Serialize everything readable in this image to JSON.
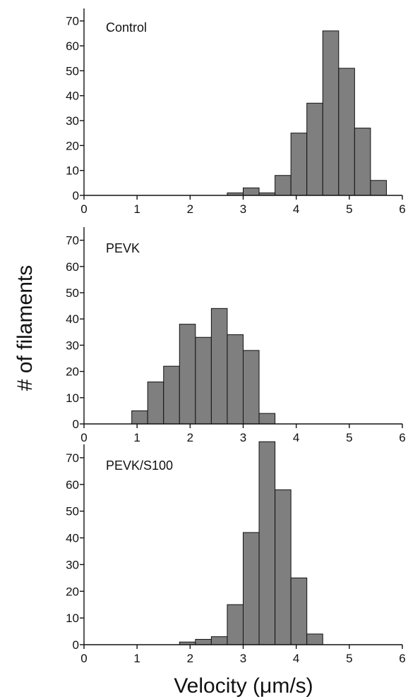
{
  "chart_data": {
    "type": "bar",
    "ylabel": "# of filaments",
    "xlabel": "Velocity (μm/s)",
    "bin_width": 0.3,
    "xlim": [
      0,
      6
    ],
    "ylim": [
      0,
      75
    ],
    "x_ticks": [
      0,
      1,
      2,
      3,
      4,
      5,
      6
    ],
    "y_ticks": [
      0,
      10,
      20,
      30,
      40,
      50,
      60,
      70
    ],
    "panels": [
      {
        "title": "Control",
        "bins": [
          {
            "x": 2.85,
            "value": 1
          },
          {
            "x": 3.15,
            "value": 3
          },
          {
            "x": 3.45,
            "value": 1
          },
          {
            "x": 3.75,
            "value": 8
          },
          {
            "x": 4.05,
            "value": 25
          },
          {
            "x": 4.35,
            "value": 37
          },
          {
            "x": 4.65,
            "value": 66
          },
          {
            "x": 4.95,
            "value": 51
          },
          {
            "x": 5.25,
            "value": 27
          },
          {
            "x": 5.55,
            "value": 6
          }
        ]
      },
      {
        "title": "PEVK",
        "bins": [
          {
            "x": 1.05,
            "value": 5
          },
          {
            "x": 1.35,
            "value": 16
          },
          {
            "x": 1.65,
            "value": 22
          },
          {
            "x": 1.95,
            "value": 38
          },
          {
            "x": 2.25,
            "value": 33
          },
          {
            "x": 2.55,
            "value": 44
          },
          {
            "x": 2.85,
            "value": 34
          },
          {
            "x": 3.15,
            "value": 28
          },
          {
            "x": 3.45,
            "value": 4
          }
        ]
      },
      {
        "title": "PEVK/S100",
        "bins": [
          {
            "x": 1.95,
            "value": 1
          },
          {
            "x": 2.25,
            "value": 2
          },
          {
            "x": 2.55,
            "value": 3
          },
          {
            "x": 2.85,
            "value": 15
          },
          {
            "x": 3.15,
            "value": 42
          },
          {
            "x": 3.45,
            "value": 76
          },
          {
            "x": 3.75,
            "value": 58
          },
          {
            "x": 4.05,
            "value": 25
          },
          {
            "x": 4.35,
            "value": 4
          }
        ]
      }
    ]
  }
}
